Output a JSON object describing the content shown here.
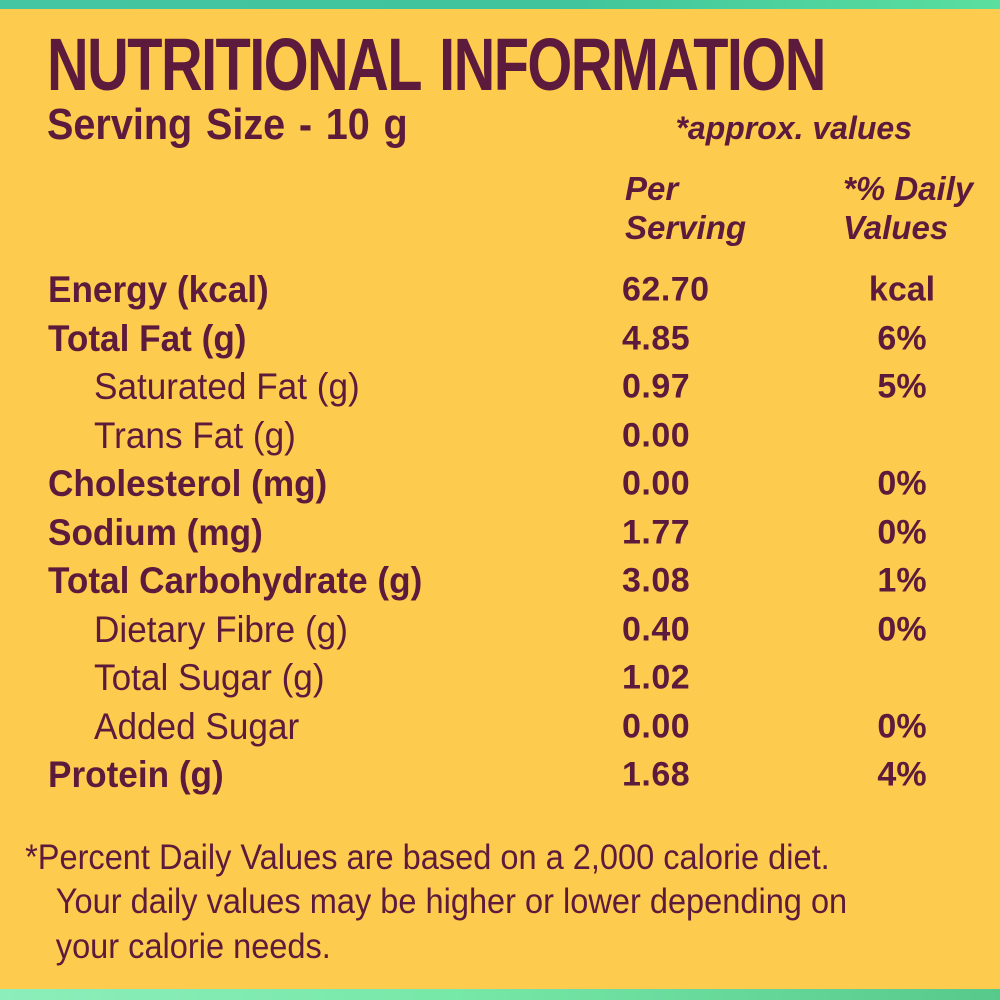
{
  "theme": {
    "background": "#FDCB4D",
    "text_color": "#5C1A3C",
    "top_strip_color": "#3FC49C",
    "bottom_strip_color": "#77E8A8"
  },
  "header": {
    "title": "NUTRITIONAL INFORMATION",
    "serving_size": "Serving Size - 10 g",
    "approx_note": "*approx. values"
  },
  "table": {
    "columns": {
      "per_serving": "Per Serving",
      "daily_values": "*% Daily Values"
    },
    "rows": [
      {
        "label": "Energy (kcal)",
        "indent": false,
        "per_serving": "62.70",
        "daily_value": "kcal"
      },
      {
        "label": "Total Fat (g)",
        "indent": false,
        "per_serving": "4.85",
        "daily_value": "6%"
      },
      {
        "label": "Saturated Fat (g)",
        "indent": true,
        "per_serving": "0.97",
        "daily_value": "5%"
      },
      {
        "label": "Trans Fat (g)",
        "indent": true,
        "per_serving": "0.00",
        "daily_value": ""
      },
      {
        "label": "Cholesterol (mg)",
        "indent": false,
        "per_serving": "0.00",
        "daily_value": "0%"
      },
      {
        "label": "Sodium (mg)",
        "indent": false,
        "per_serving": "1.77",
        "daily_value": "0%"
      },
      {
        "label": "Total Carbohydrate (g)",
        "indent": false,
        "per_serving": "3.08",
        "daily_value": "1%"
      },
      {
        "label": "Dietary Fibre (g)",
        "indent": true,
        "per_serving": "0.40",
        "daily_value": "0%"
      },
      {
        "label": "Total Sugar (g)",
        "indent": true,
        "per_serving": "1.02",
        "daily_value": ""
      },
      {
        "label": "Added Sugar",
        "indent": true,
        "per_serving": "0.00",
        "daily_value": "0%"
      },
      {
        "label": "Protein (g)",
        "indent": false,
        "per_serving": "1.68",
        "daily_value": "4%"
      }
    ]
  },
  "footnote": {
    "line1": "*Percent Daily Values are based on a 2,000 calorie diet.",
    "line2": "Your daily values may be higher or lower depending on",
    "line3": "your calorie needs."
  }
}
